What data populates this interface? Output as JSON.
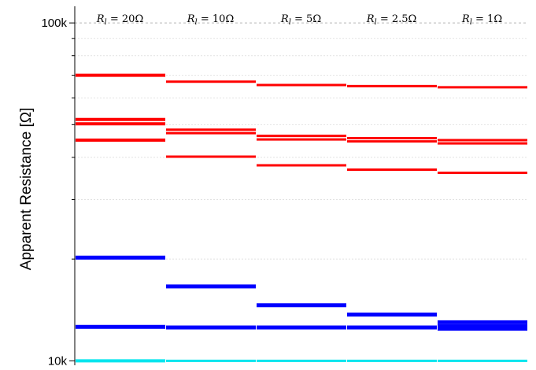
{
  "chart_data": {
    "type": "bar",
    "ylabel": "Apparent Resistance [Ω]",
    "yscale": "log",
    "ylim": [
      9700,
      112000
    ],
    "yticks": [
      {
        "value": 100000,
        "label": "100k"
      },
      {
        "value": 10000,
        "label": "10k"
      }
    ],
    "grid": true,
    "columns": [
      {
        "label_var": "R",
        "label_sub": "l",
        "label_rest": " = 20Ω"
      },
      {
        "label_var": "R",
        "label_sub": "l",
        "label_rest": " = 10Ω"
      },
      {
        "label_var": "R",
        "label_sub": "l",
        "label_rest": " = 5Ω"
      },
      {
        "label_var": "R",
        "label_sub": "l",
        "label_rest": " = 2.5Ω"
      },
      {
        "label_var": "R",
        "label_sub": "l",
        "label_rest": " = 1Ω"
      }
    ],
    "series": [
      {
        "color": "#ff0000",
        "values": [
          70000,
          67000,
          65500,
          65000,
          64500
        ]
      },
      {
        "color": "#ff0000",
        "values": [
          51800,
          48300,
          46300,
          45600,
          45000
        ]
      },
      {
        "color": "#ff0000",
        "values": [
          50300,
          47200,
          45200,
          44600,
          44000
        ]
      },
      {
        "color": "#ff0000",
        "values": [
          45000,
          40200,
          37900,
          36800,
          36000
        ]
      },
      {
        "color": "#0000ff",
        "values": [
          20200,
          16600,
          14600,
          13700,
          13000
        ]
      },
      {
        "color": "#0000ff",
        "values": [
          12600,
          12550,
          12550,
          12550,
          12550
        ]
      },
      {
        "color": "#00e5ee",
        "values": [
          10000,
          10000,
          10000,
          10000,
          10000
        ]
      }
    ]
  }
}
